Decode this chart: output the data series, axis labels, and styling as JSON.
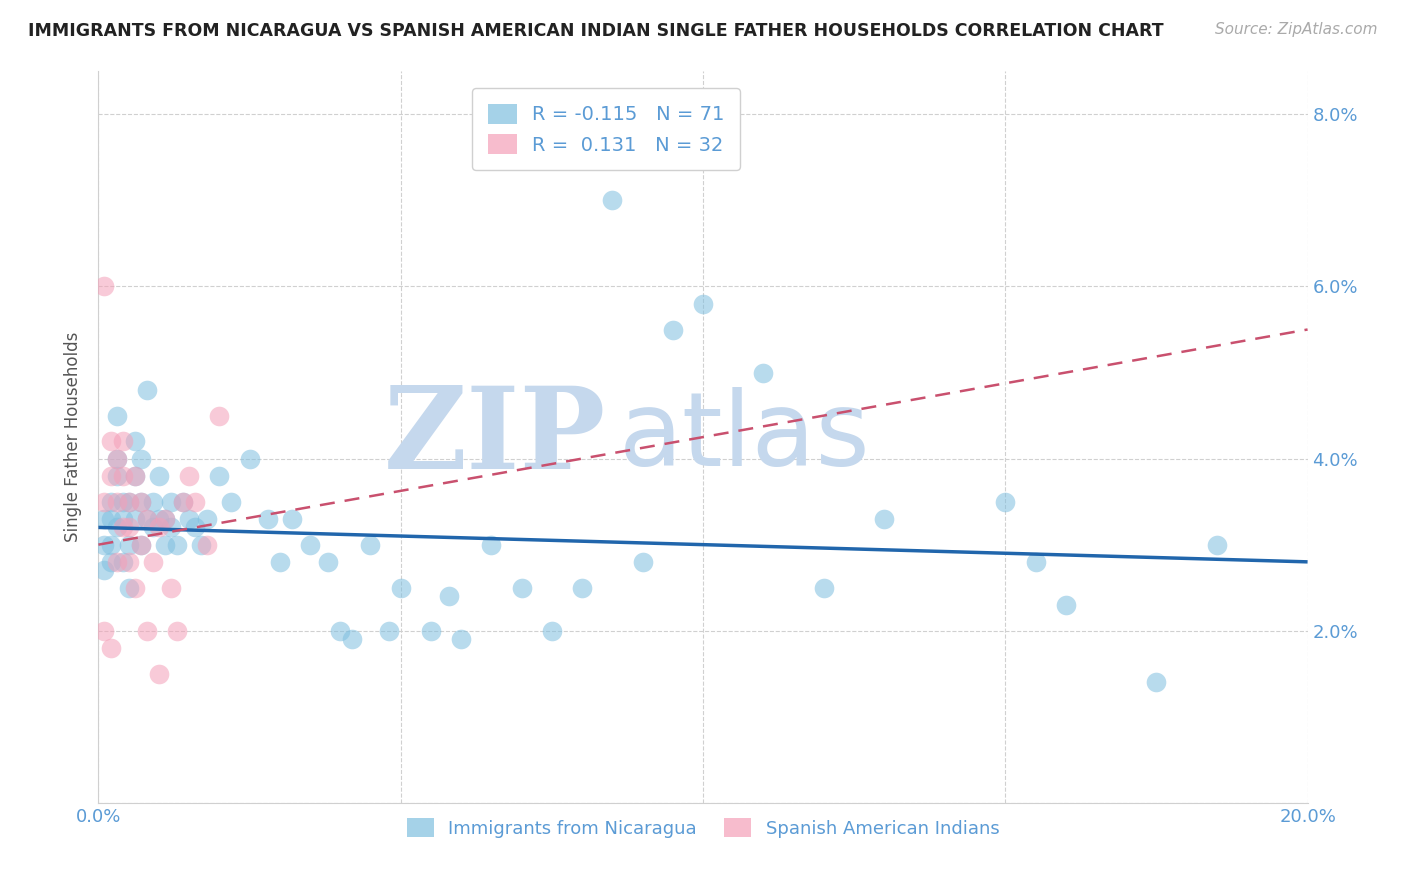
{
  "title": "IMMIGRANTS FROM NICARAGUA VS SPANISH AMERICAN INDIAN SINGLE FATHER HOUSEHOLDS CORRELATION CHART",
  "source": "Source: ZipAtlas.com",
  "ylabel": "Single Father Households",
  "xlim": [
    0.0,
    0.2
  ],
  "ylim": [
    0.0,
    0.085
  ],
  "xticks": [
    0.0,
    0.05,
    0.1,
    0.15,
    0.2
  ],
  "xtick_labels": [
    "0.0%",
    "",
    "",
    "",
    "20.0%"
  ],
  "yticks": [
    0.0,
    0.02,
    0.04,
    0.06,
    0.08
  ],
  "ytick_labels_right": [
    "",
    "2.0%",
    "4.0%",
    "6.0%",
    "8.0%"
  ],
  "blue_R": -0.115,
  "blue_N": 71,
  "pink_R": 0.131,
  "pink_N": 32,
  "blue_color": "#7fbfdf",
  "pink_color": "#f4a0b8",
  "blue_line_color": "#2166ac",
  "pink_line_color": "#c9506e",
  "watermark_zip": "ZIP",
  "watermark_atlas": "atlas",
  "watermark_color": "#c5d8ed",
  "background_color": "#ffffff",
  "grid_color": "#d0d0d0",
  "tick_label_color": "#5b9bd5",
  "title_color": "#222222",
  "source_color": "#aaaaaa",
  "blue_line_y0": 0.032,
  "blue_line_y1": 0.028,
  "pink_line_y0": 0.03,
  "pink_line_y1": 0.055,
  "blue_scatter_x": [
    0.001,
    0.001,
    0.001,
    0.002,
    0.002,
    0.002,
    0.002,
    0.003,
    0.003,
    0.003,
    0.003,
    0.004,
    0.004,
    0.004,
    0.005,
    0.005,
    0.005,
    0.006,
    0.006,
    0.006,
    0.007,
    0.007,
    0.007,
    0.008,
    0.008,
    0.009,
    0.009,
    0.01,
    0.01,
    0.011,
    0.011,
    0.012,
    0.012,
    0.013,
    0.014,
    0.015,
    0.016,
    0.017,
    0.018,
    0.02,
    0.022,
    0.025,
    0.028,
    0.03,
    0.032,
    0.035,
    0.038,
    0.04,
    0.042,
    0.045,
    0.048,
    0.05,
    0.055,
    0.058,
    0.06,
    0.065,
    0.07,
    0.075,
    0.08,
    0.085,
    0.09,
    0.095,
    0.1,
    0.11,
    0.12,
    0.13,
    0.15,
    0.155,
    0.16,
    0.175,
    0.185
  ],
  "blue_scatter_y": [
    0.03,
    0.033,
    0.027,
    0.028,
    0.035,
    0.03,
    0.033,
    0.045,
    0.038,
    0.032,
    0.04,
    0.035,
    0.028,
    0.033,
    0.035,
    0.03,
    0.025,
    0.042,
    0.038,
    0.033,
    0.035,
    0.03,
    0.04,
    0.033,
    0.048,
    0.032,
    0.035,
    0.033,
    0.038,
    0.03,
    0.033,
    0.035,
    0.032,
    0.03,
    0.035,
    0.033,
    0.032,
    0.03,
    0.033,
    0.038,
    0.035,
    0.04,
    0.033,
    0.028,
    0.033,
    0.03,
    0.028,
    0.02,
    0.019,
    0.03,
    0.02,
    0.025,
    0.02,
    0.024,
    0.019,
    0.03,
    0.025,
    0.02,
    0.025,
    0.07,
    0.028,
    0.055,
    0.058,
    0.05,
    0.025,
    0.033,
    0.035,
    0.028,
    0.023,
    0.014,
    0.03
  ],
  "pink_scatter_x": [
    0.001,
    0.001,
    0.001,
    0.002,
    0.002,
    0.002,
    0.003,
    0.003,
    0.003,
    0.004,
    0.004,
    0.004,
    0.005,
    0.005,
    0.005,
    0.006,
    0.006,
    0.007,
    0.007,
    0.008,
    0.008,
    0.009,
    0.01,
    0.01,
    0.011,
    0.012,
    0.013,
    0.014,
    0.015,
    0.016,
    0.018,
    0.02
  ],
  "pink_scatter_y": [
    0.06,
    0.035,
    0.02,
    0.042,
    0.038,
    0.018,
    0.04,
    0.035,
    0.028,
    0.038,
    0.042,
    0.032,
    0.035,
    0.032,
    0.028,
    0.038,
    0.025,
    0.035,
    0.03,
    0.033,
    0.02,
    0.028,
    0.032,
    0.015,
    0.033,
    0.025,
    0.02,
    0.035,
    0.038,
    0.035,
    0.03,
    0.045
  ]
}
